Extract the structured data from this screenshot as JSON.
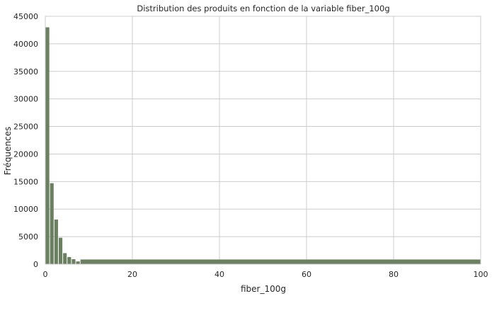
{
  "chart_data": {
    "type": "bar",
    "title": "Distribution des produits en fonction de la variable fiber_100g",
    "xlabel": "fiber_100g",
    "ylabel": "Fréquences",
    "xlim": [
      0,
      100
    ],
    "ylim": [
      0,
      45000
    ],
    "xticks": [
      0,
      20,
      40,
      60,
      80,
      100
    ],
    "yticks": [
      0,
      5000,
      10000,
      15000,
      20000,
      25000,
      30000,
      35000,
      40000,
      45000
    ],
    "grid": true,
    "bar_color": "#6b8060",
    "bins": [
      {
        "x0": 0,
        "x1": 1,
        "value": 43000
      },
      {
        "x0": 1,
        "x1": 2,
        "value": 14700
      },
      {
        "x0": 2,
        "x1": 3,
        "value": 8100
      },
      {
        "x0": 3,
        "x1": 4,
        "value": 4800
      },
      {
        "x0": 4,
        "x1": 5,
        "value": 2000
      },
      {
        "x0": 5,
        "x1": 6,
        "value": 1300
      },
      {
        "x0": 6,
        "x1": 7,
        "value": 900
      },
      {
        "x0": 7,
        "x1": 8,
        "value": 500
      },
      {
        "x0": 8,
        "x1": 100,
        "value": 850
      }
    ]
  }
}
